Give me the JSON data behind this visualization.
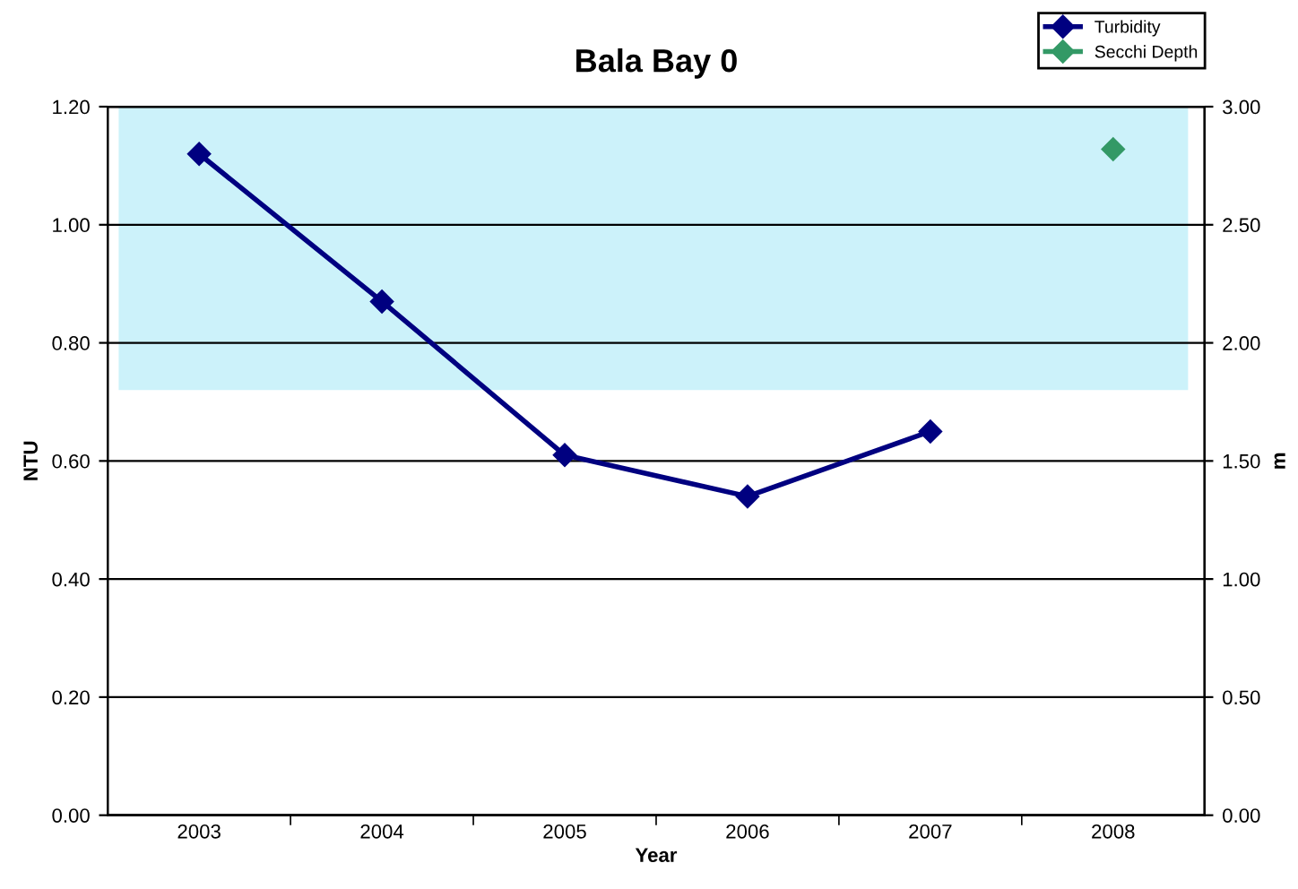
{
  "chart_data": {
    "type": "line",
    "title": "Bala Bay 0",
    "xlabel": "Year",
    "ylabel": "NTU",
    "y2label": "m",
    "categories": [
      "2003",
      "2004",
      "2005",
      "2006",
      "2007",
      "2008"
    ],
    "series": [
      {
        "name": "Turbidity",
        "color": "#000080",
        "values": [
          1.12,
          0.87,
          0.61,
          0.54,
          0.65,
          null
        ],
        "marker": "diamond"
      },
      {
        "name": "Secchi Depth",
        "color": "#339966",
        "values": [
          null,
          null,
          null,
          null,
          null,
          2.82
        ],
        "axis": "y2",
        "marker": "diamond"
      }
    ],
    "ylim": [
      0,
      1.2
    ],
    "yticks": [
      {
        "value": 0,
        "label": "0.00"
      },
      {
        "value": 0.2,
        "label": "0.20"
      },
      {
        "value": 0.4,
        "label": "0.40"
      },
      {
        "value": 0.6,
        "label": "0.60"
      },
      {
        "value": 0.8,
        "label": "0.80"
      },
      {
        "value": 1.0,
        "label": "1.00"
      },
      {
        "value": 1.2,
        "label": "1.20"
      }
    ],
    "y2lim": [
      0,
      3
    ],
    "y2ticks": [
      {
        "value": 0,
        "label": "0.00"
      },
      {
        "value": 0.5,
        "label": "0.50"
      },
      {
        "value": 1.0,
        "label": "1.00"
      },
      {
        "value": 1.5,
        "label": "1.50"
      },
      {
        "value": 2.0,
        "label": "2.00"
      },
      {
        "value": 2.5,
        "label": "2.50"
      },
      {
        "value": 3.0,
        "label": "3.00"
      }
    ],
    "bands": [
      {
        "axis": "y",
        "from": 0.72,
        "to": 1.2,
        "color": "#ccf2fa"
      }
    ],
    "grid": "y",
    "legend": "top right"
  }
}
